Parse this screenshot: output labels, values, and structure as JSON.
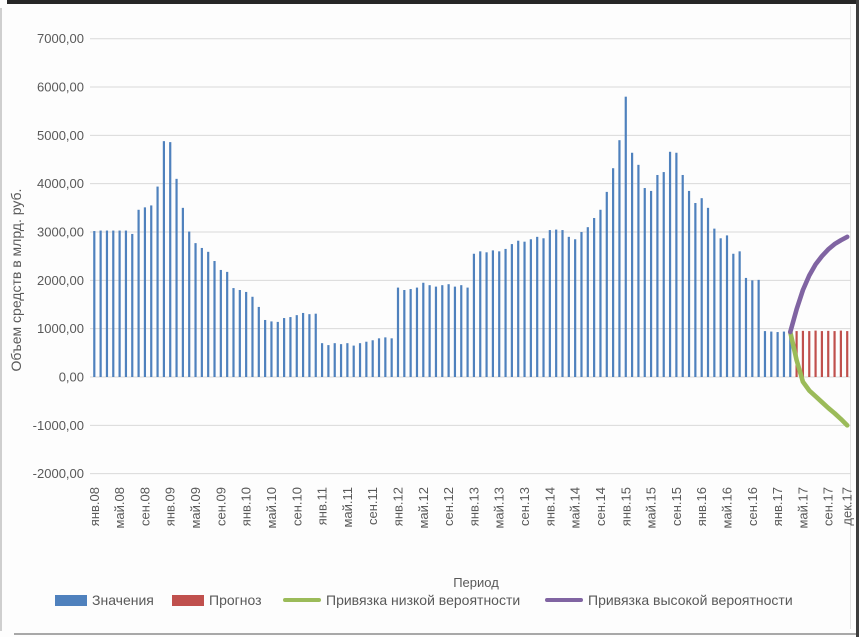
{
  "chart_data": {
    "type": "bar",
    "title": "",
    "xlabel": "Период",
    "ylabel": "Объем средств в млрд. руб.",
    "ylim": [
      -2000,
      7000
    ],
    "grid": true,
    "legend_position": "bottom",
    "months_total": 120,
    "x_range_note": "monthly categories Jan 2008 - Dec 2017",
    "yticks": [
      {
        "v": 7000,
        "label": "7000,00"
      },
      {
        "v": 6000,
        "label": "6000,00"
      },
      {
        "v": 5000,
        "label": "5000,00"
      },
      {
        "v": 4000,
        "label": "4000,00"
      },
      {
        "v": 3000,
        "label": "3000,00"
      },
      {
        "v": 2000,
        "label": "2000,00"
      },
      {
        "v": 1000,
        "label": "1000,00"
      },
      {
        "v": 0,
        "label": "0,00"
      },
      {
        "v": -1000,
        "label": "-1000,00"
      },
      {
        "v": -2000,
        "label": "-2000,00"
      }
    ],
    "x_tick_indices": [
      0,
      4,
      8,
      12,
      16,
      20,
      24,
      28,
      32,
      36,
      40,
      44,
      48,
      52,
      56,
      60,
      64,
      68,
      72,
      76,
      80,
      84,
      88,
      92,
      96,
      100,
      104,
      108,
      112,
      116,
      119
    ],
    "x_tick_labels": [
      "янв.08",
      "май.08",
      "сен.08",
      "янв.09",
      "май.09",
      "сен.09",
      "янв.10",
      "май.10",
      "сен.10",
      "янв.11",
      "май.11",
      "сен.11",
      "янв.12",
      "май.12",
      "сен.12",
      "янв.13",
      "май.13",
      "сен.13",
      "янв.14",
      "май.14",
      "сен.14",
      "янв.15",
      "май.15",
      "сен.15",
      "янв.16",
      "май.16",
      "сен.16",
      "янв.17",
      "май.17",
      "сен.17",
      "дек.17"
    ],
    "series": [
      {
        "name": "Значения",
        "type": "bar",
        "color": "#4F81BD",
        "start_index": 0,
        "values": [
          3020,
          3030,
          3030,
          3030,
          3030,
          3030,
          2960,
          3460,
          3510,
          3550,
          3940,
          4880,
          4860,
          4100,
          3500,
          3010,
          2770,
          2670,
          2590,
          2400,
          2215,
          2175,
          1840,
          1800,
          1760,
          1660,
          1450,
          1180,
          1150,
          1140,
          1220,
          1240,
          1280,
          1325,
          1300,
          1310,
          700,
          660,
          700,
          680,
          700,
          650,
          700,
          730,
          760,
          800,
          820,
          800,
          1850,
          1800,
          1820,
          1850,
          1950,
          1900,
          1870,
          1900,
          1920,
          1870,
          1900,
          1850,
          2550,
          2600,
          2580,
          2620,
          2600,
          2650,
          2750,
          2820,
          2800,
          2850,
          2900,
          2870,
          3040,
          3050,
          3040,
          2900,
          2850,
          3000,
          3100,
          3290,
          3460,
          3830,
          4320,
          4900,
          5800,
          4640,
          4390,
          3910,
          3850,
          4180,
          4240,
          4660,
          4640,
          4180,
          3850,
          3600,
          3700,
          3500,
          3070,
          2870,
          2930,
          2550,
          2600,
          2050,
          2000,
          2010,
          950,
          940,
          930,
          940,
          930
        ]
      },
      {
        "name": "Прогноз",
        "type": "bar",
        "color": "#C0504D",
        "start_index": 111,
        "values": [
          950,
          955,
          950,
          960,
          950,
          955,
          950,
          960,
          950
        ]
      },
      {
        "name": "Привязка низкой вероятности",
        "type": "line",
        "color": "#9BBB59",
        "start_index": 110,
        "values": [
          930,
          350,
          -100,
          -280,
          -400,
          -520,
          -640,
          -750,
          -870,
          -1000
        ]
      },
      {
        "name": "Привязка высокой вероятности",
        "type": "line",
        "color": "#8064A2",
        "start_index": 110,
        "values": [
          930,
          1400,
          1800,
          2100,
          2330,
          2500,
          2640,
          2750,
          2830,
          2900
        ]
      }
    ]
  }
}
